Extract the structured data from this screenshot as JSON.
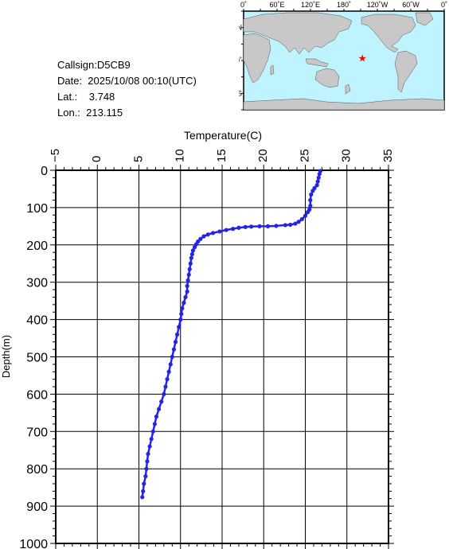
{
  "info": {
    "callsign": "Callsign:D5CB9",
    "date": "Date:  2025/10/08 00:10(UTC)",
    "lat": "Lat.:    3.748",
    "lon": "Lon.:  213.115"
  },
  "map": {
    "top_labels": [
      "0˚",
      "60˚E",
      "120˚E",
      "180˚",
      "120˚W",
      "60˚W",
      "0˚"
    ],
    "left_labels": [
      "60˚N",
      "0˚",
      "60˚S"
    ],
    "ocean_color": "#bff3ff",
    "land_color": "#c8c8c8",
    "marker_color": "#ff0000",
    "marker": {
      "lon": 213.115,
      "lat": 3.748
    }
  },
  "chart_data": {
    "type": "scatter",
    "title": "",
    "xlabel": "Temperature(C)",
    "ylabel": "Depth(m)",
    "xlim": [
      -5,
      35
    ],
    "ylim": [
      1000,
      0
    ],
    "x_ticks": [
      -5,
      0,
      5,
      10,
      15,
      20,
      25,
      30,
      35
    ],
    "y_ticks": [
      0,
      100,
      200,
      300,
      400,
      500,
      600,
      700,
      800,
      900,
      1000
    ],
    "grid": true,
    "color": "#2424e6",
    "series": [
      {
        "points": [
          [
            26.8,
            2
          ],
          [
            26.7,
            10
          ],
          [
            26.6,
            20
          ],
          [
            26.5,
            30
          ],
          [
            26.4,
            40
          ],
          [
            26.1,
            48
          ],
          [
            25.9,
            55
          ],
          [
            25.7,
            65
          ],
          [
            25.6,
            80
          ],
          [
            25.6,
            95
          ],
          [
            25.5,
            105
          ],
          [
            25.3,
            112
          ],
          [
            25.0,
            122
          ],
          [
            24.6,
            131
          ],
          [
            24.2,
            138
          ],
          [
            23.8,
            143
          ],
          [
            23.2,
            146
          ],
          [
            22.6,
            147
          ],
          [
            21.5,
            149
          ],
          [
            20.5,
            150
          ],
          [
            19.5,
            150
          ],
          [
            18.5,
            151
          ],
          [
            17.8,
            152
          ],
          [
            17.0,
            154
          ],
          [
            16.3,
            157
          ],
          [
            15.5,
            160
          ],
          [
            14.7,
            164
          ],
          [
            13.9,
            168
          ],
          [
            13.3,
            172
          ],
          [
            12.8,
            177
          ],
          [
            12.4,
            184
          ],
          [
            12.1,
            191
          ],
          [
            11.9,
            198
          ],
          [
            11.7,
            206
          ],
          [
            11.5,
            215
          ],
          [
            11.4,
            225
          ],
          [
            11.3,
            235
          ],
          [
            11.2,
            250
          ],
          [
            11.1,
            265
          ],
          [
            11.0,
            280
          ],
          [
            10.9,
            295
          ],
          [
            10.8,
            310
          ],
          [
            10.8,
            325
          ],
          [
            10.6,
            340
          ],
          [
            10.4,
            355
          ],
          [
            10.2,
            370
          ],
          [
            10.1,
            385
          ],
          [
            10.0,
            400
          ],
          [
            9.8,
            420
          ],
          [
            9.6,
            440
          ],
          [
            9.4,
            460
          ],
          [
            9.2,
            480
          ],
          [
            9.0,
            500
          ],
          [
            8.8,
            520
          ],
          [
            8.6,
            540
          ],
          [
            8.4,
            560
          ],
          [
            8.2,
            580
          ],
          [
            8.0,
            600
          ],
          [
            7.7,
            620
          ],
          [
            7.4,
            640
          ],
          [
            7.1,
            660
          ],
          [
            6.9,
            680
          ],
          [
            6.7,
            700
          ],
          [
            6.5,
            720
          ],
          [
            6.3,
            740
          ],
          [
            6.1,
            760
          ],
          [
            6.0,
            780
          ],
          [
            5.9,
            800
          ],
          [
            5.8,
            820
          ],
          [
            5.6,
            840
          ],
          [
            5.5,
            860
          ],
          [
            5.4,
            876
          ]
        ]
      }
    ]
  }
}
